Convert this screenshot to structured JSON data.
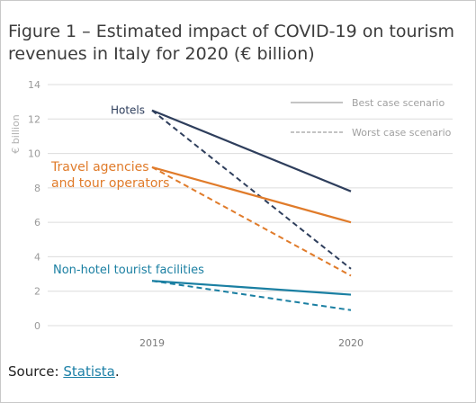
{
  "title": "Figure 1 – Estimated impact of COVID-19 on tourism revenues in Italy for 2020 (€ billion)",
  "source": {
    "prefix": "Source: ",
    "link_text": "Statista",
    "suffix": "."
  },
  "chart_data": {
    "type": "line",
    "title": "Figure 1 – Estimated impact of COVID-19 on tourism revenues in Italy for 2020 (€ billion)",
    "xlabel": "",
    "ylabel": "€ billion",
    "categories": [
      "2019",
      "2020"
    ],
    "ylim": [
      0,
      14
    ],
    "yticks": [
      0,
      2,
      4,
      6,
      8,
      10,
      12,
      14
    ],
    "grid": true,
    "legend": {
      "position": "top-right",
      "entries": [
        {
          "label": "Best case scenario",
          "style": "solid"
        },
        {
          "label": "Worst case scenario",
          "style": "dashed"
        }
      ]
    },
    "series": [
      {
        "name": "Hotels",
        "color": "#2e3e5c",
        "best": [
          12.5,
          7.8
        ],
        "worst": [
          12.5,
          3.3
        ]
      },
      {
        "name": "Travel agencies and tour operators",
        "color": "#e07b2a",
        "best": [
          9.2,
          6.0
        ],
        "worst": [
          9.2,
          2.9
        ]
      },
      {
        "name": "Non-hotel tourist facilities",
        "color": "#1a7fa2",
        "best": [
          2.6,
          1.8
        ],
        "worst": [
          2.6,
          0.9
        ]
      }
    ]
  }
}
